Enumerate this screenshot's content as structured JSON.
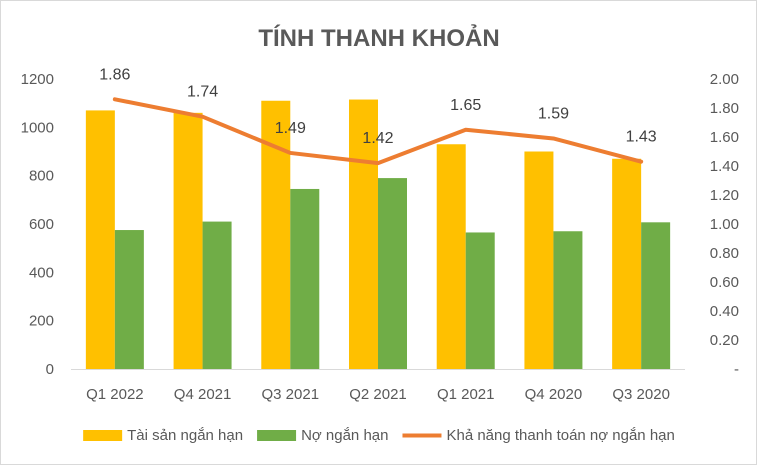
{
  "chart_data": {
    "type": "bar",
    "title": "TÍNH THANH KHOẢN",
    "categories": [
      "Q1 2022",
      "Q4 2021",
      "Q3 2021",
      "Q2 2021",
      "Q1 2021",
      "Q4 2020",
      "Q3 2020"
    ],
    "series": [
      {
        "name": "Tài sản ngắn hạn",
        "type": "bar",
        "axis": "left",
        "color": "#FFC000",
        "values": [
          1070,
          1060,
          1110,
          1115,
          930,
          900,
          870
        ]
      },
      {
        "name": "Nợ ngắn hạn",
        "type": "bar",
        "axis": "left",
        "color": "#70AD47",
        "values": [
          575,
          610,
          745,
          790,
          565,
          570,
          607
        ]
      },
      {
        "name": "Khả năng thanh toán nợ ngắn hạn",
        "type": "line",
        "axis": "right",
        "color": "#ED7D31",
        "values": [
          1.86,
          1.74,
          1.49,
          1.42,
          1.65,
          1.59,
          1.43
        ],
        "labels": [
          "1.86",
          "1.74",
          "1.49",
          "1.42",
          "1.65",
          "1.59",
          "1.43"
        ]
      }
    ],
    "left_axis": {
      "min": 0,
      "max": 1200,
      "ticks": [
        "0",
        "200",
        "400",
        "600",
        "800",
        "1000",
        "1200"
      ]
    },
    "right_axis": {
      "min": 0,
      "max": 2.0,
      "ticks": [
        "-",
        "0.20",
        "0.40",
        "0.60",
        "0.80",
        "1.00",
        "1.20",
        "1.40",
        "1.60",
        "1.80",
        "2.00"
      ]
    },
    "grid": false,
    "legend_position": "bottom"
  }
}
